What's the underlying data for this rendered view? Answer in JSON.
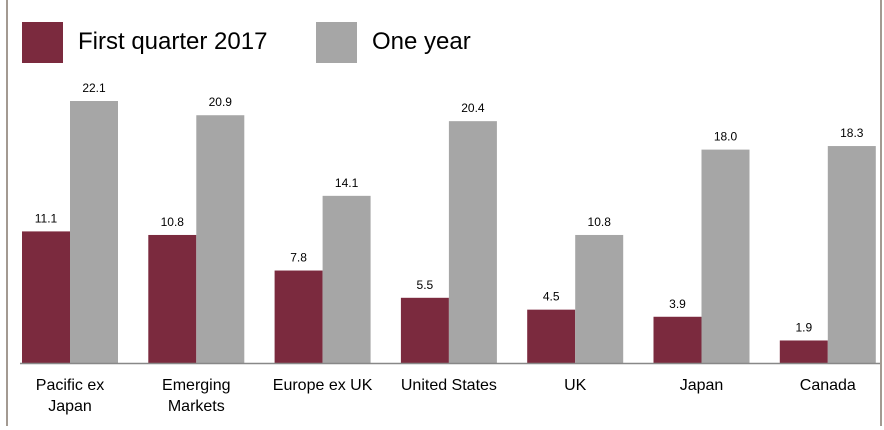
{
  "chart_data": {
    "type": "bar",
    "title": "",
    "xlabel": "",
    "ylabel": "",
    "categories": [
      "Pacific ex\nJapan",
      "Emerging\nMarkets",
      "Europe ex UK",
      "United States",
      "UK",
      "Japan",
      "Canada"
    ],
    "series": [
      {
        "name": "First quarter 2017",
        "values": [
          11.1,
          10.8,
          7.8,
          5.5,
          4.5,
          3.9,
          1.9
        ],
        "color": "#7b2a3e"
      },
      {
        "name": "One year",
        "values": [
          22.1,
          20.9,
          14.1,
          20.4,
          10.8,
          18.0,
          18.3
        ],
        "color": "#a6a6a6"
      }
    ],
    "ylim": [
      0,
      25
    ],
    "grid": false,
    "legend": "top-left",
    "data_labels": true
  }
}
